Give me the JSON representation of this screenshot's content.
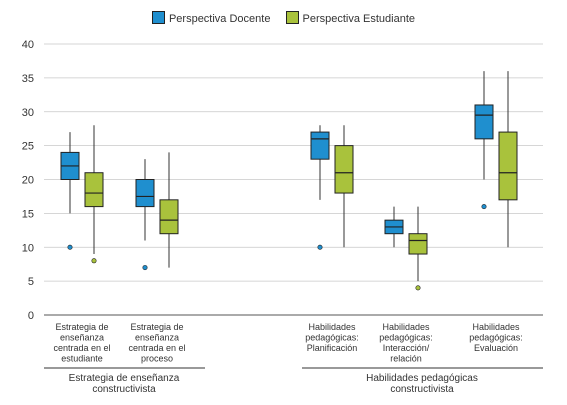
{
  "colors": {
    "docente": "#1f8fcf",
    "estudiante": "#a9c23c",
    "axis": "#555555",
    "grid": "#c8c8c8"
  },
  "chart_data": {
    "type": "box",
    "ylim": [
      0,
      40
    ],
    "yticks": [
      "0",
      "5",
      "10",
      "15",
      "20",
      "25",
      "30",
      "35",
      "40"
    ],
    "legend_position": "top-center",
    "grid": "horizontal",
    "series": [
      {
        "name": "Perspectiva Docente",
        "color": "#1f8fcf"
      },
      {
        "name": "Perspectiva Estudiante",
        "color": "#a9c23c"
      }
    ],
    "categories": [
      {
        "label": [
          "Estrategia de",
          "enseñanza",
          "centrada en el",
          "estudiante"
        ],
        "boxes": [
          {
            "min": 15,
            "q1": 20,
            "median": 22,
            "q3": 24,
            "max": 27,
            "outliers": [
              10
            ]
          },
          {
            "min": 9,
            "q1": 16,
            "median": 18,
            "q3": 21,
            "max": 28,
            "outliers": [
              8
            ]
          }
        ]
      },
      {
        "label": [
          "Estrategia de",
          "enseñanza",
          "centrada en el",
          "proceso"
        ],
        "boxes": [
          {
            "min": 11,
            "q1": 16,
            "median": 17.5,
            "q3": 20,
            "max": 23,
            "outliers": [
              7
            ]
          },
          {
            "min": 7,
            "q1": 12,
            "median": 14,
            "q3": 17,
            "max": 24,
            "outliers": []
          }
        ]
      },
      {
        "label": [
          "Habilidades",
          "pedagógicas:",
          "Planificación"
        ],
        "boxes": [
          {
            "min": 17,
            "q1": 23,
            "median": 26,
            "q3": 27,
            "max": 28,
            "outliers": [
              10
            ]
          },
          {
            "min": 10,
            "q1": 18,
            "median": 21,
            "q3": 25,
            "max": 28,
            "outliers": []
          }
        ]
      },
      {
        "label": [
          "Habilidades",
          "pedagógicas:",
          "Interacción/",
          "relación"
        ],
        "boxes": [
          {
            "min": 10,
            "q1": 12,
            "median": 13,
            "q3": 14,
            "max": 16,
            "outliers": []
          },
          {
            "min": 5,
            "q1": 9,
            "median": 11,
            "q3": 12,
            "max": 16,
            "outliers": [
              4
            ]
          }
        ]
      },
      {
        "label": [
          "Habilidades",
          "pedagógicas:",
          "Evaluación"
        ],
        "boxes": [
          {
            "min": 20,
            "q1": 26,
            "median": 29.5,
            "q3": 31,
            "max": 36,
            "outliers": [
              16
            ]
          },
          {
            "min": 10,
            "q1": 17,
            "median": 21,
            "q3": 27,
            "max": 36,
            "outliers": []
          }
        ]
      }
    ],
    "groups": [
      {
        "label": [
          "Estrategia de enseñanza",
          "constructivista"
        ]
      },
      {
        "label": [
          "Habilidades pedagógicas",
          "constructivista"
        ]
      }
    ]
  }
}
